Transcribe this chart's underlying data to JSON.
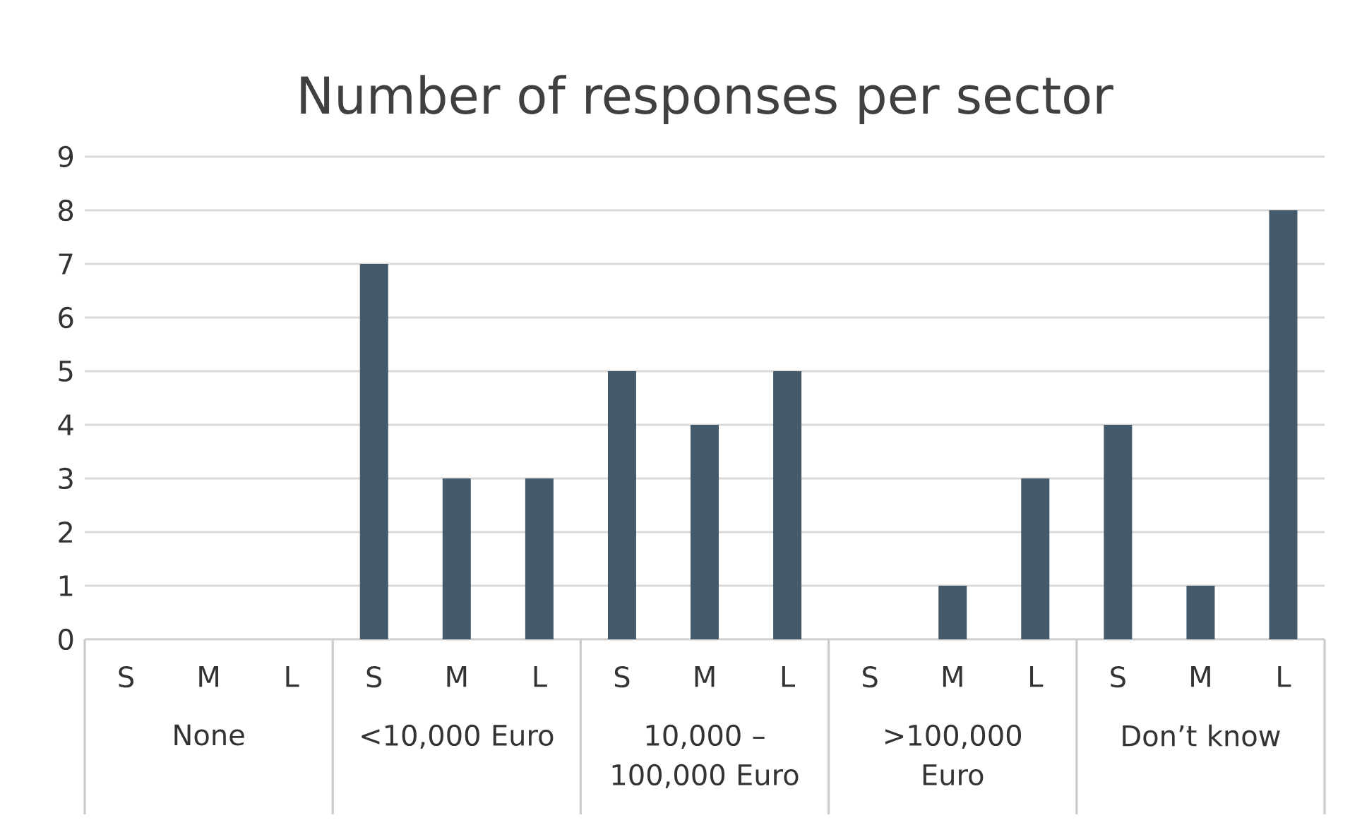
{
  "chart_data": {
    "type": "bar",
    "title": "Number of responses per sector",
    "categories": [
      "S",
      "M",
      "L",
      "S",
      "M",
      "L",
      "S",
      "M",
      "L",
      "S",
      "M",
      "L",
      "S",
      "M",
      "L"
    ],
    "values": [
      0,
      0,
      0,
      7,
      3,
      3,
      5,
      4,
      5,
      0,
      1,
      3,
      4,
      1,
      8
    ],
    "color": "#44596a",
    "ylim": [
      0,
      9
    ],
    "yticks": [
      0,
      1,
      2,
      3,
      4,
      5,
      6,
      7,
      8,
      9
    ],
    "grid": "y",
    "annotations": [
      "None",
      "<10,000 Euro",
      "10,000 – 100,000 Euro",
      ">100,000 Euro",
      "Don’t know"
    ]
  }
}
